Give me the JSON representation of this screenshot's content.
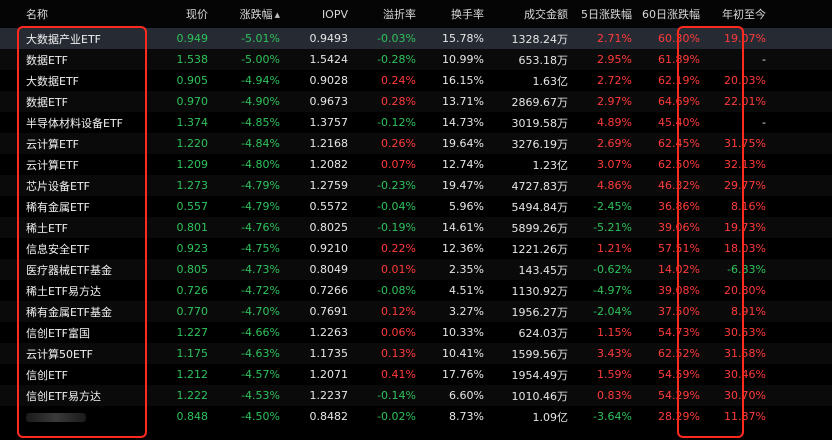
{
  "headers": {
    "name": "名称",
    "price": "现价",
    "change": "涨跌幅",
    "sort_arrow": "▲",
    "iopv": "IOPV",
    "premium": "溢折率",
    "turnover": "换手率",
    "amount": "成交金额",
    "d5": "5日涨跌幅",
    "d60": "60日涨跌幅",
    "ytd": "年初至今"
  },
  "colors": {
    "up": "#ff3b3b",
    "down": "#2fc25b",
    "highlight_frame": "#ff2a1f"
  },
  "rows": [
    {
      "name": "大数据产业ETF",
      "price": "0.949",
      "change": "-5.01%",
      "iopv": "0.9493",
      "premium": "-0.03%",
      "turnover": "15.78%",
      "amount": "1328.24万",
      "d5": "2.71%",
      "d60": "60.30%",
      "ytd": "19.07%"
    },
    {
      "name": "数据ETF",
      "price": "1.538",
      "change": "-5.00%",
      "iopv": "1.5424",
      "premium": "-0.28%",
      "turnover": "10.99%",
      "amount": "653.18万",
      "d5": "2.95%",
      "d60": "61.89%",
      "ytd": "-"
    },
    {
      "name": "大数据ETF",
      "price": "0.905",
      "change": "-4.94%",
      "iopv": "0.9028",
      "premium": "0.24%",
      "turnover": "16.15%",
      "amount": "1.63亿",
      "d5": "2.72%",
      "d60": "62.19%",
      "ytd": "20.03%"
    },
    {
      "name": "数据ETF",
      "price": "0.970",
      "change": "-4.90%",
      "iopv": "0.9673",
      "premium": "0.28%",
      "turnover": "13.71%",
      "amount": "2869.67万",
      "d5": "2.97%",
      "d60": "64.69%",
      "ytd": "22.01%"
    },
    {
      "name": "半导体材料设备ETF",
      "price": "1.374",
      "change": "-4.85%",
      "iopv": "1.3757",
      "premium": "-0.12%",
      "turnover": "14.73%",
      "amount": "3019.58万",
      "d5": "4.89%",
      "d60": "45.40%",
      "ytd": "-"
    },
    {
      "name": "云计算ETF",
      "price": "1.220",
      "change": "-4.84%",
      "iopv": "1.2168",
      "premium": "0.26%",
      "turnover": "19.64%",
      "amount": "3276.19万",
      "d5": "2.69%",
      "d60": "62.45%",
      "ytd": "31.75%"
    },
    {
      "name": "云计算ETF",
      "price": "1.209",
      "change": "-4.80%",
      "iopv": "1.2082",
      "premium": "0.07%",
      "turnover": "12.74%",
      "amount": "1.23亿",
      "d5": "3.07%",
      "d60": "62.50%",
      "ytd": "32.13%"
    },
    {
      "name": "芯片设备ETF",
      "price": "1.273",
      "change": "-4.79%",
      "iopv": "1.2759",
      "premium": "-0.23%",
      "turnover": "19.47%",
      "amount": "4727.83万",
      "d5": "4.86%",
      "d60": "46.32%",
      "ytd": "29.77%"
    },
    {
      "name": "稀有金属ETF",
      "price": "0.557",
      "change": "-4.79%",
      "iopv": "0.5572",
      "premium": "-0.04%",
      "turnover": "5.96%",
      "amount": "5494.84万",
      "d5": "-2.45%",
      "d60": "36.86%",
      "ytd": "8.16%"
    },
    {
      "name": "稀土ETF",
      "price": "0.801",
      "change": "-4.76%",
      "iopv": "0.8025",
      "premium": "-0.19%",
      "turnover": "14.61%",
      "amount": "5899.26万",
      "d5": "-5.21%",
      "d60": "39.06%",
      "ytd": "19.73%"
    },
    {
      "name": "信息安全ETF",
      "price": "0.923",
      "change": "-4.75%",
      "iopv": "0.9210",
      "premium": "0.22%",
      "turnover": "12.36%",
      "amount": "1221.26万",
      "d5": "1.21%",
      "d60": "57.51%",
      "ytd": "18.03%"
    },
    {
      "name": "医疗器械ETF基金",
      "price": "0.805",
      "change": "-4.73%",
      "iopv": "0.8049",
      "premium": "0.01%",
      "turnover": "2.35%",
      "amount": "143.45万",
      "d5": "-0.62%",
      "d60": "14.02%",
      "ytd": "-6.83%"
    },
    {
      "name": "稀土ETF易方达",
      "price": "0.726",
      "change": "-4.72%",
      "iopv": "0.7266",
      "premium": "-0.08%",
      "turnover": "4.51%",
      "amount": "1130.92万",
      "d5": "-4.97%",
      "d60": "39.08%",
      "ytd": "20.80%"
    },
    {
      "name": "稀有金属ETF基金",
      "price": "0.770",
      "change": "-4.70%",
      "iopv": "0.7691",
      "premium": "0.12%",
      "turnover": "3.27%",
      "amount": "1956.27万",
      "d5": "-2.04%",
      "d60": "37.50%",
      "ytd": "8.91%"
    },
    {
      "name": "信创ETF富国",
      "price": "1.227",
      "change": "-4.66%",
      "iopv": "1.2263",
      "premium": "0.06%",
      "turnover": "10.33%",
      "amount": "624.03万",
      "d5": "1.15%",
      "d60": "54.73%",
      "ytd": "30.53%"
    },
    {
      "name": "云计算50ETF",
      "price": "1.175",
      "change": "-4.63%",
      "iopv": "1.1735",
      "premium": "0.13%",
      "turnover": "10.41%",
      "amount": "1599.56万",
      "d5": "3.43%",
      "d60": "62.52%",
      "ytd": "31.58%"
    },
    {
      "name": "信创ETF",
      "price": "1.212",
      "change": "-4.57%",
      "iopv": "1.2071",
      "premium": "0.41%",
      "turnover": "17.76%",
      "amount": "1954.49万",
      "d5": "1.59%",
      "d60": "54.59%",
      "ytd": "30.46%"
    },
    {
      "name": "信创ETF易方达",
      "price": "1.222",
      "change": "-4.53%",
      "iopv": "1.2237",
      "premium": "-0.14%",
      "turnover": "6.60%",
      "amount": "1010.46万",
      "d5": "0.83%",
      "d60": "54.29%",
      "ytd": "30.70%"
    },
    {
      "name": "",
      "price": "0.848",
      "change": "-4.50%",
      "iopv": "0.8482",
      "premium": "-0.02%",
      "turnover": "8.73%",
      "amount": "1.09亿",
      "d5": "-3.64%",
      "d60": "28.29%",
      "ytd": "11.87%"
    }
  ]
}
